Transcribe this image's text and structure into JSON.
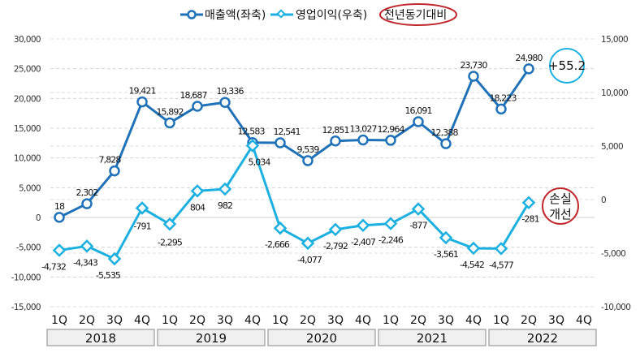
{
  "chart_data": {
    "type": "line",
    "title": "",
    "legend": {
      "placement": "top",
      "entries": [
        "매출액(좌축)",
        "영업이익(우축)",
        "전년동기대비"
      ]
    },
    "years": [
      "2018",
      "2019",
      "2020",
      "2021",
      "2022"
    ],
    "categories": [
      "1Q",
      "2Q",
      "3Q",
      "4Q",
      "1Q",
      "2Q",
      "3Q",
      "4Q",
      "1Q",
      "2Q",
      "3Q",
      "4Q",
      "1Q",
      "2Q",
      "3Q",
      "4Q",
      "1Q",
      "2Q",
      "3Q",
      "4Q"
    ],
    "y_left": {
      "ylim": [
        -15000,
        30000
      ],
      "ticks": [
        30000,
        25000,
        20000,
        15000,
        10000,
        5000,
        0,
        -5000,
        -10000,
        -15000
      ],
      "tick_labels": [
        "30,000",
        "25,000",
        "20,000",
        "15,000",
        "10,000",
        "5,000",
        "0",
        "-5,000",
        "-10,000",
        "-15,000"
      ]
    },
    "y_right": {
      "ylim": [
        -10000,
        15000
      ],
      "ticks": [
        15000,
        10000,
        5000,
        0,
        -5000,
        -10000
      ],
      "tick_labels": [
        "15,000",
        "10,000",
        "5,000",
        "0",
        "-5,000",
        "-10,000"
      ]
    },
    "grid": true,
    "series": [
      {
        "name": "매출액(좌축)",
        "axis": "left",
        "color": "#1f72b8",
        "marker": "circle",
        "values": [
          18,
          2302,
          7828,
          19421,
          15892,
          18687,
          19336,
          12583,
          12541,
          9539,
          12851,
          13027,
          12964,
          16091,
          12388,
          23730,
          18223,
          24980,
          null,
          null
        ],
        "labels": [
          "18",
          "2,302",
          "7,828",
          "19,421",
          "15,892",
          "18,687",
          "19,336",
          "12,583",
          "12,541",
          "9,539",
          "12,851",
          "13,027",
          "12,964",
          "16,091",
          "12,388",
          "23,730",
          "18,223",
          "24,980"
        ]
      },
      {
        "name": "영업이익(우축)",
        "axis": "right",
        "color": "#1bb0e0",
        "marker": "diamond",
        "values": [
          -4732,
          -4343,
          -5535,
          -791,
          -2295,
          804,
          982,
          5034,
          -2666,
          -4077,
          -2792,
          -2407,
          -2246,
          -877,
          -3561,
          -4542,
          -4577,
          -281,
          null,
          null
        ],
        "labels": [
          "-4,732",
          "-4,343",
          "-5,535",
          "-791",
          "-2,295",
          "804",
          "982",
          "5,034",
          "-2,666",
          "-4,077",
          "-2,792",
          "-2,407",
          "-2,246",
          "-877",
          "-3,561",
          "-4,542",
          "-4,577",
          "-281"
        ]
      }
    ],
    "annotations": [
      {
        "text": "+55.2",
        "target": "매출액(좌축)",
        "style": "circle",
        "color": "#1bb0e0"
      },
      {
        "text_line1": "손실",
        "text_line2": "개선",
        "target": "영업이익(우축)",
        "style": "circle",
        "color": "#c0282d"
      }
    ],
    "legend_highlight_color": "#c0282d"
  }
}
